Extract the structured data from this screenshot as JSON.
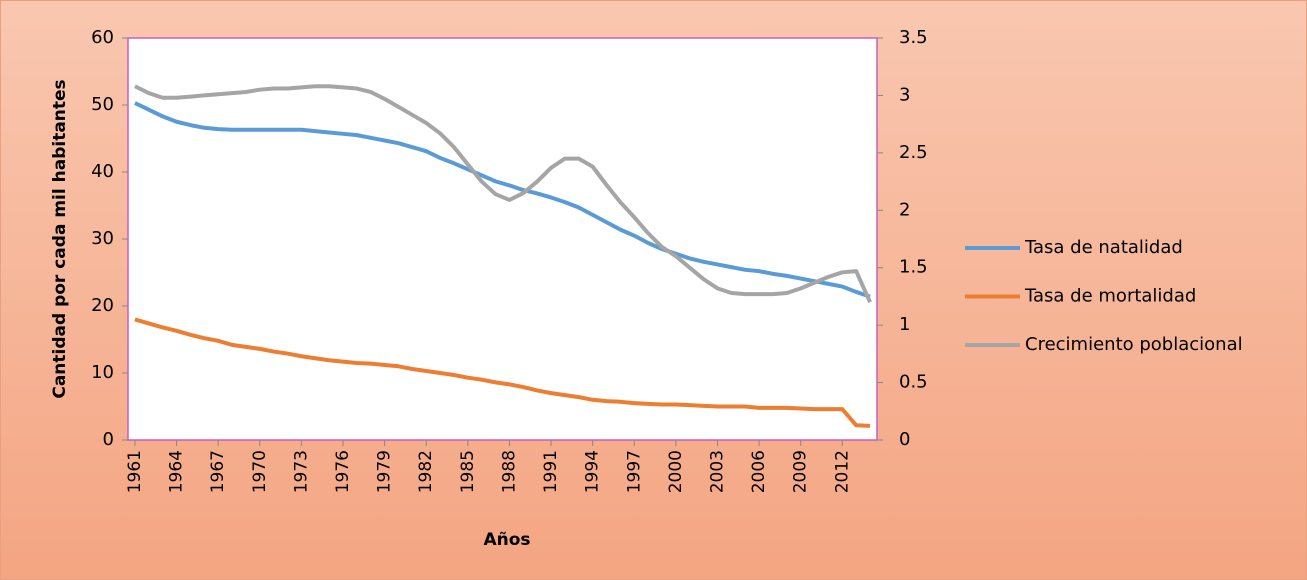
{
  "chart_data": {
    "type": "line",
    "x": [
      1961,
      1962,
      1963,
      1964,
      1965,
      1966,
      1967,
      1968,
      1969,
      1970,
      1971,
      1972,
      1973,
      1974,
      1975,
      1976,
      1977,
      1978,
      1979,
      1980,
      1981,
      1982,
      1983,
      1984,
      1985,
      1986,
      1987,
      1988,
      1989,
      1990,
      1991,
      1992,
      1993,
      1994,
      1995,
      1996,
      1997,
      1998,
      1999,
      2000,
      2001,
      2002,
      2003,
      2004,
      2005,
      2006,
      2007,
      2008,
      2009,
      2010,
      2011,
      2012,
      2013,
      2014
    ],
    "xlim": [
      1960.5,
      2014.5
    ],
    "xticks": [
      1961,
      1964,
      1967,
      1970,
      1973,
      1976,
      1979,
      1982,
      1985,
      1988,
      1991,
      1994,
      1997,
      2000,
      2003,
      2006,
      2009,
      2012
    ],
    "xlabel": "Años",
    "ylabel": "Cantidad por cada mil habitantes",
    "ylim": [
      0,
      60
    ],
    "yticks": [
      0,
      10,
      20,
      30,
      40,
      50,
      60
    ],
    "y2lim": [
      0,
      3.5
    ],
    "y2ticks": [
      0,
      0.5,
      1,
      1.5,
      2,
      2.5,
      3,
      3.5
    ],
    "legend": "right",
    "series": [
      {
        "name": "Tasa de natalidad",
        "color": "#5b9bd5",
        "values": [
          50.3,
          49.3,
          48.3,
          47.5,
          47.0,
          46.6,
          46.4,
          46.3,
          46.3,
          46.3,
          46.3,
          46.3,
          46.3,
          46.1,
          45.9,
          45.7,
          45.5,
          45.1,
          44.7,
          44.3,
          43.7,
          43.1,
          42.1,
          41.3,
          40.4,
          39.5,
          38.6,
          38.0,
          37.3,
          36.8,
          36.2,
          35.5,
          34.7,
          33.6,
          32.5,
          31.4,
          30.5,
          29.4,
          28.5,
          27.8,
          27.1,
          26.6,
          26.2,
          25.8,
          25.4,
          25.2,
          24.8,
          24.5,
          24.1,
          23.7,
          23.3,
          22.9,
          22.1,
          21.4
        ]
      },
      {
        "name": "Tasa de mortalidad",
        "color": "#ed7d31",
        "values": [
          18.0,
          17.4,
          16.8,
          16.3,
          15.7,
          15.2,
          14.8,
          14.2,
          13.9,
          13.6,
          13.2,
          12.9,
          12.5,
          12.2,
          11.9,
          11.7,
          11.5,
          11.4,
          11.2,
          11.0,
          10.6,
          10.3,
          10.0,
          9.7,
          9.3,
          9.0,
          8.6,
          8.3,
          7.9,
          7.4,
          7.0,
          6.7,
          6.4,
          6.0,
          5.8,
          5.7,
          5.5,
          5.4,
          5.3,
          5.3,
          5.2,
          5.1,
          5.0,
          5.0,
          5.0,
          4.8,
          4.8,
          4.8,
          4.7,
          4.6,
          4.6,
          4.6,
          2.2,
          2.1
        ]
      },
      {
        "name": "Crecimiento poblacional",
        "color": "#a5a5a5",
        "axis": "y2",
        "values": [
          3.08,
          3.02,
          2.98,
          2.98,
          2.99,
          3.0,
          3.01,
          3.02,
          3.03,
          3.05,
          3.06,
          3.06,
          3.07,
          3.08,
          3.08,
          3.07,
          3.06,
          3.03,
          2.97,
          2.9,
          2.83,
          2.76,
          2.67,
          2.55,
          2.4,
          2.25,
          2.14,
          2.09,
          2.15,
          2.25,
          2.37,
          2.45,
          2.45,
          2.38,
          2.22,
          2.07,
          1.94,
          1.8,
          1.68,
          1.6,
          1.5,
          1.4,
          1.32,
          1.28,
          1.27,
          1.27,
          1.27,
          1.28,
          1.32,
          1.37,
          1.42,
          1.46,
          1.47,
          1.2
        ]
      }
    ]
  }
}
